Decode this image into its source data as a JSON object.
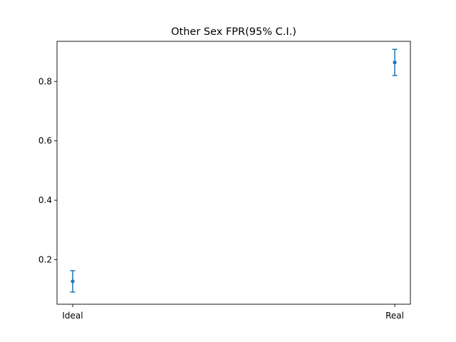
{
  "chart_data": {
    "type": "scatter",
    "title": "Other Sex FPR(95% C.I.)",
    "xlabel": "",
    "ylabel": "",
    "categories": [
      "Ideal",
      "Real"
    ],
    "series": [
      {
        "values": [
          0.127,
          0.864
        ],
        "ci_lower": [
          0.091,
          0.82
        ],
        "ci_upper": [
          0.163,
          0.908
        ]
      }
    ],
    "ylim": [
      0.05,
      0.935
    ],
    "yticks": [
      0.2,
      0.4,
      0.6,
      0.8
    ],
    "ytick_labels": [
      "0.2",
      "0.4",
      "0.6",
      "0.8"
    ],
    "grid": false,
    "legend": "none",
    "colors": {
      "series": "#1f77b4",
      "axes": "#000000",
      "background": "#ffffff"
    }
  }
}
